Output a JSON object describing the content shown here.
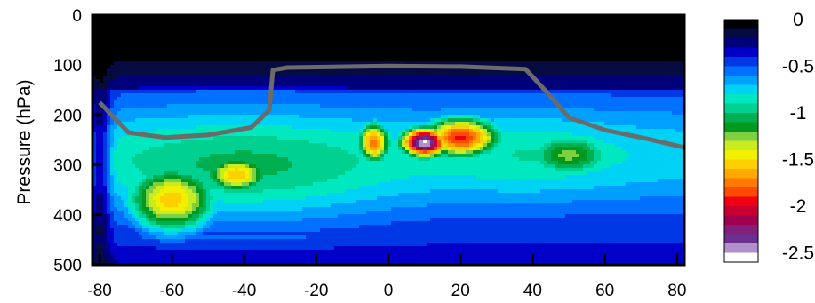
{
  "chart_data": {
    "type": "heatmap",
    "title": "",
    "xlabel": "",
    "ylabel": "Pressure (hPa)",
    "xlim": [
      -82,
      82
    ],
    "ylim": [
      0,
      500
    ],
    "y_inverted": true,
    "x_ticks": [
      -80,
      -60,
      -40,
      -20,
      0,
      20,
      40,
      60,
      80
    ],
    "y_ticks": [
      0,
      100,
      200,
      300,
      400,
      500
    ],
    "colorbar": {
      "min": -2.6,
      "max": 0,
      "step": 0.1,
      "tick_values": [
        0,
        -0.5,
        -1,
        -1.5,
        -2,
        -2.5
      ],
      "tick_labels": [
        "0",
        "-0.5",
        "-1",
        "-1.5",
        "-2",
        "-2.5"
      ],
      "colors": [
        "#000000",
        "#050a40",
        "#00007a",
        "#0000c8",
        "#0038e6",
        "#0070ff",
        "#00a0ff",
        "#00d2f5",
        "#00e8c0",
        "#00d090",
        "#00b050",
        "#009a20",
        "#7fd040",
        "#c8ec20",
        "#f0f000",
        "#ffd000",
        "#ffa800",
        "#ff7a00",
        "#ff4a00",
        "#f00010",
        "#c80030",
        "#a00050",
        "#80207a",
        "#6a3090",
        "#b090cc",
        "#ffffff"
      ]
    },
    "field_centers": [
      {
        "x": -60,
        "p": 370,
        "value": -1.45,
        "sx": 14,
        "sp": 75
      },
      {
        "x": -42,
        "p": 320,
        "value": -1.45,
        "sx": 10,
        "sp": 40
      },
      {
        "x": -4,
        "p": 255,
        "value": -1.65,
        "sx": 5,
        "sp": 45
      },
      {
        "x": 10,
        "p": 255,
        "value": -2.4,
        "sx": 7,
        "sp": 32
      },
      {
        "x": 20,
        "p": 245,
        "value": -1.8,
        "sx": 12,
        "sp": 45
      },
      {
        "x": 50,
        "p": 280,
        "value": -1.1,
        "sx": 15,
        "sp": 55
      }
    ],
    "tropopause_line": {
      "color": "#6b6b6b",
      "points": [
        [
          -80,
          175
        ],
        [
          -72,
          235
        ],
        [
          -62,
          245
        ],
        [
          -50,
          240
        ],
        [
          -38,
          225
        ],
        [
          -33,
          190
        ],
        [
          -32,
          110
        ],
        [
          -28,
          105
        ],
        [
          0,
          102
        ],
        [
          20,
          103
        ],
        [
          38,
          108
        ],
        [
          44,
          155
        ],
        [
          50,
          205
        ],
        [
          60,
          230
        ],
        [
          72,
          248
        ],
        [
          82,
          265
        ]
      ]
    }
  }
}
